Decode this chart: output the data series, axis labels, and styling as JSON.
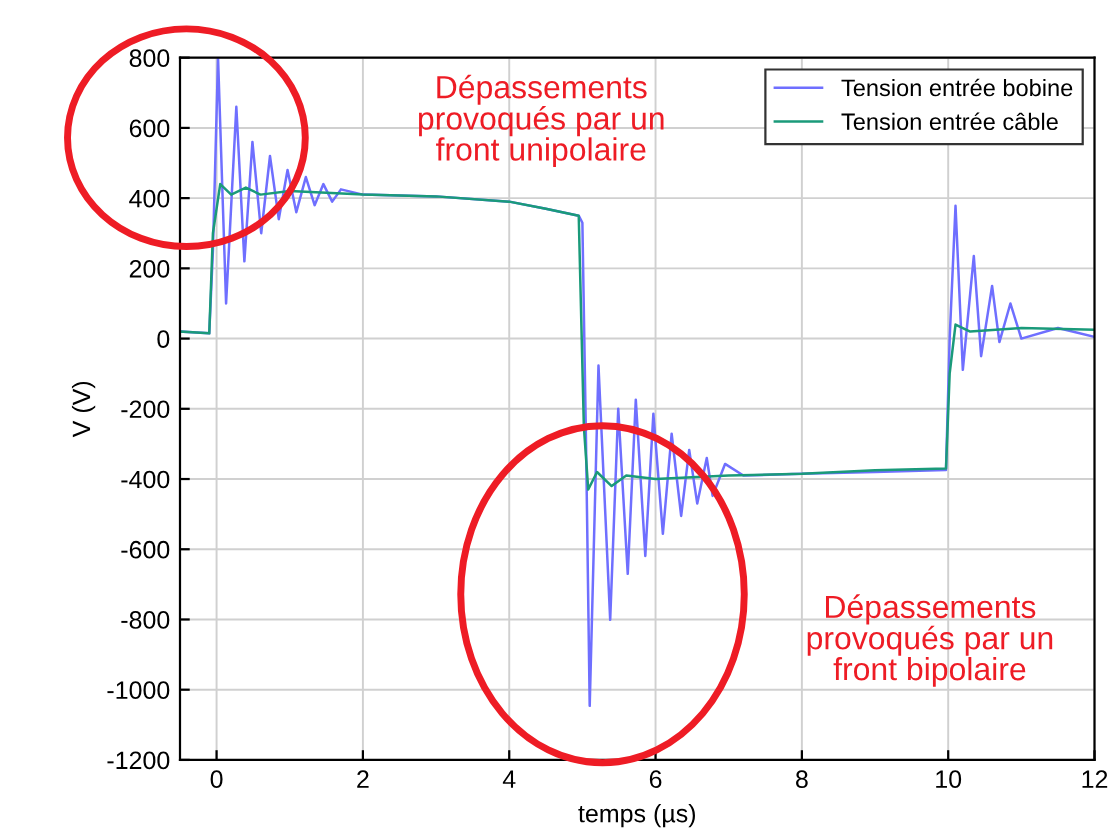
{
  "chart_data": {
    "type": "line",
    "xlabel": "temps (µs)",
    "ylabel": "V (V)",
    "xlim": [
      -0.5,
      12
    ],
    "ylim": [
      -1200,
      800
    ],
    "xticks": [
      0,
      2,
      4,
      6,
      8,
      10,
      12
    ],
    "yticks": [
      -1200,
      -1000,
      -800,
      -600,
      -400,
      -200,
      0,
      200,
      400,
      600,
      800
    ],
    "grid": true,
    "legend": "top right",
    "line_style": "solid",
    "marker": "none",
    "annotations": [
      "Dépassements\nprovoqués par un\nfront unipolaire",
      "Dépassements\nprovoqués par un\nfront bipolaire"
    ],
    "series": [
      {
        "name": "Tension entrée bobine",
        "color": "#6f6fff",
        "x": [
          -0.5,
          -0.1,
          -0.05,
          0.02,
          0.13,
          0.27,
          0.38,
          0.49,
          0.61,
          0.73,
          0.85,
          0.97,
          1.09,
          1.22,
          1.34,
          1.46,
          1.58,
          1.7,
          2,
          3,
          4,
          4.5,
          4.95,
          5.0,
          5.05,
          5.1,
          5.22,
          5.38,
          5.49,
          5.62,
          5.73,
          5.86,
          5.97,
          6.1,
          6.22,
          6.35,
          6.46,
          6.57,
          6.7,
          6.78,
          6.95,
          7.2,
          8,
          9,
          9.97,
          10.02,
          10.1,
          10.2,
          10.35,
          10.45,
          10.6,
          10.7,
          10.85,
          11,
          11.5,
          12
        ],
        "values": [
          20,
          15,
          250,
          800,
          100,
          660,
          220,
          560,
          300,
          520,
          340,
          480,
          360,
          460,
          380,
          440,
          390,
          425,
          410,
          405,
          390,
          370,
          350,
          330,
          -300,
          -1046,
          -77,
          -801,
          -200,
          -670,
          -174,
          -619,
          -214,
          -556,
          -271,
          -505,
          -317,
          -470,
          -340,
          -448,
          -357,
          -390,
          -385,
          -380,
          -374,
          0,
          378,
          -89,
          235,
          -50,
          150,
          -10,
          100,
          0,
          30,
          5
        ]
      },
      {
        "name": "Tension entrée câble",
        "color": "#1a9a7a",
        "x": [
          -0.5,
          -0.1,
          -0.05,
          0.05,
          0.2,
          0.4,
          0.6,
          1,
          2,
          3,
          4,
          4.5,
          4.95,
          5.02,
          5.08,
          5.2,
          5.4,
          5.6,
          6,
          7,
          8,
          9,
          9.97,
          10.02,
          10.1,
          10.3,
          11,
          12
        ],
        "values": [
          20,
          15,
          300,
          440,
          410,
          430,
          410,
          420,
          410,
          405,
          390,
          370,
          350,
          -250,
          -430,
          -380,
          -420,
          -390,
          -400,
          -390,
          -385,
          -375,
          -370,
          -100,
          40,
          20,
          30,
          25
        ]
      }
    ]
  }
}
